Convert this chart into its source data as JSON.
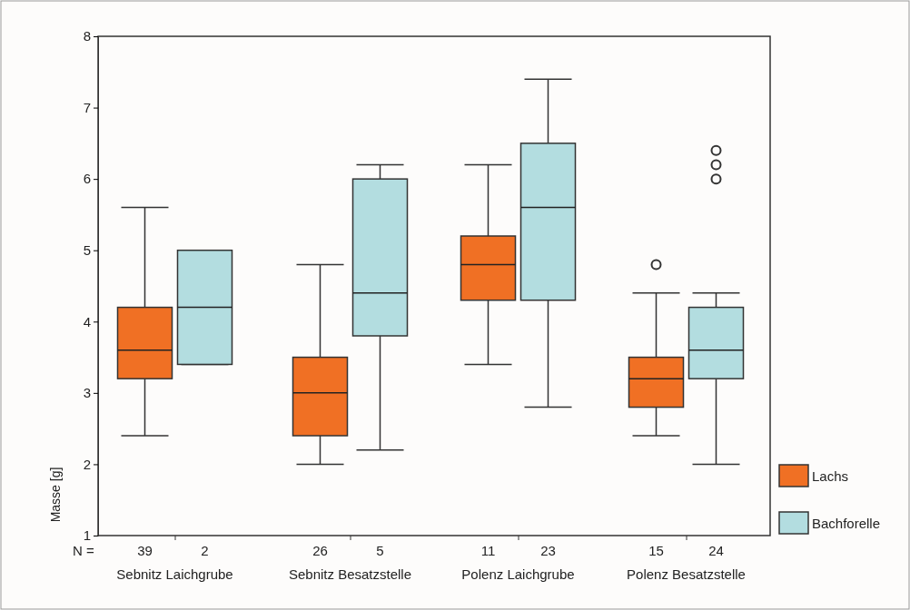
{
  "chart_data": {
    "type": "box",
    "ylabel": "Masse [g]",
    "categories": [
      "Sebnitz Laichgrube",
      "Sebnitz Besatzstelle",
      "Polenz Laichgrube",
      "Polenz Besatzstelle"
    ],
    "ylim": [
      1,
      8
    ],
    "yticks": [
      1,
      2,
      3,
      4,
      5,
      6,
      7,
      8
    ],
    "legend": "bottom right",
    "series": [
      {
        "name": "Lachs",
        "color": "#f07024",
        "boxes": [
          {
            "low": 2.4,
            "q1": 3.2,
            "median": 3.6,
            "q3": 4.2,
            "high": 5.6
          },
          {
            "low": 2.0,
            "q1": 2.4,
            "median": 3.0,
            "q3": 3.5,
            "high": 4.8
          },
          {
            "low": 3.4,
            "q1": 4.3,
            "median": 4.8,
            "q3": 5.2,
            "high": 6.2
          },
          {
            "low": 2.4,
            "q1": 2.8,
            "median": 3.2,
            "q3": 3.5,
            "high": 4.4,
            "outliers": [
              4.8
            ]
          }
        ]
      },
      {
        "name": "Bachforelle",
        "color": "#b3dde0",
        "boxes": [
          {
            "low": 3.4,
            "q1": 3.4,
            "median": 4.2,
            "q3": 5.0,
            "high": 5.0
          },
          {
            "low": 2.2,
            "q1": 3.8,
            "median": 4.4,
            "q3": 6.0,
            "high": 6.2
          },
          {
            "low": 2.8,
            "q1": 4.3,
            "median": 5.6,
            "q3": 6.5,
            "high": 7.4
          },
          {
            "low": 2.0,
            "q1": 3.2,
            "median": 3.6,
            "q3": 4.2,
            "high": 4.4,
            "outliers": [
              6.0,
              6.2,
              6.4
            ]
          }
        ]
      }
    ],
    "annotations": [
      "N =",
      "39",
      "2",
      "26",
      "5",
      "11",
      "23",
      "15",
      "24"
    ]
  }
}
